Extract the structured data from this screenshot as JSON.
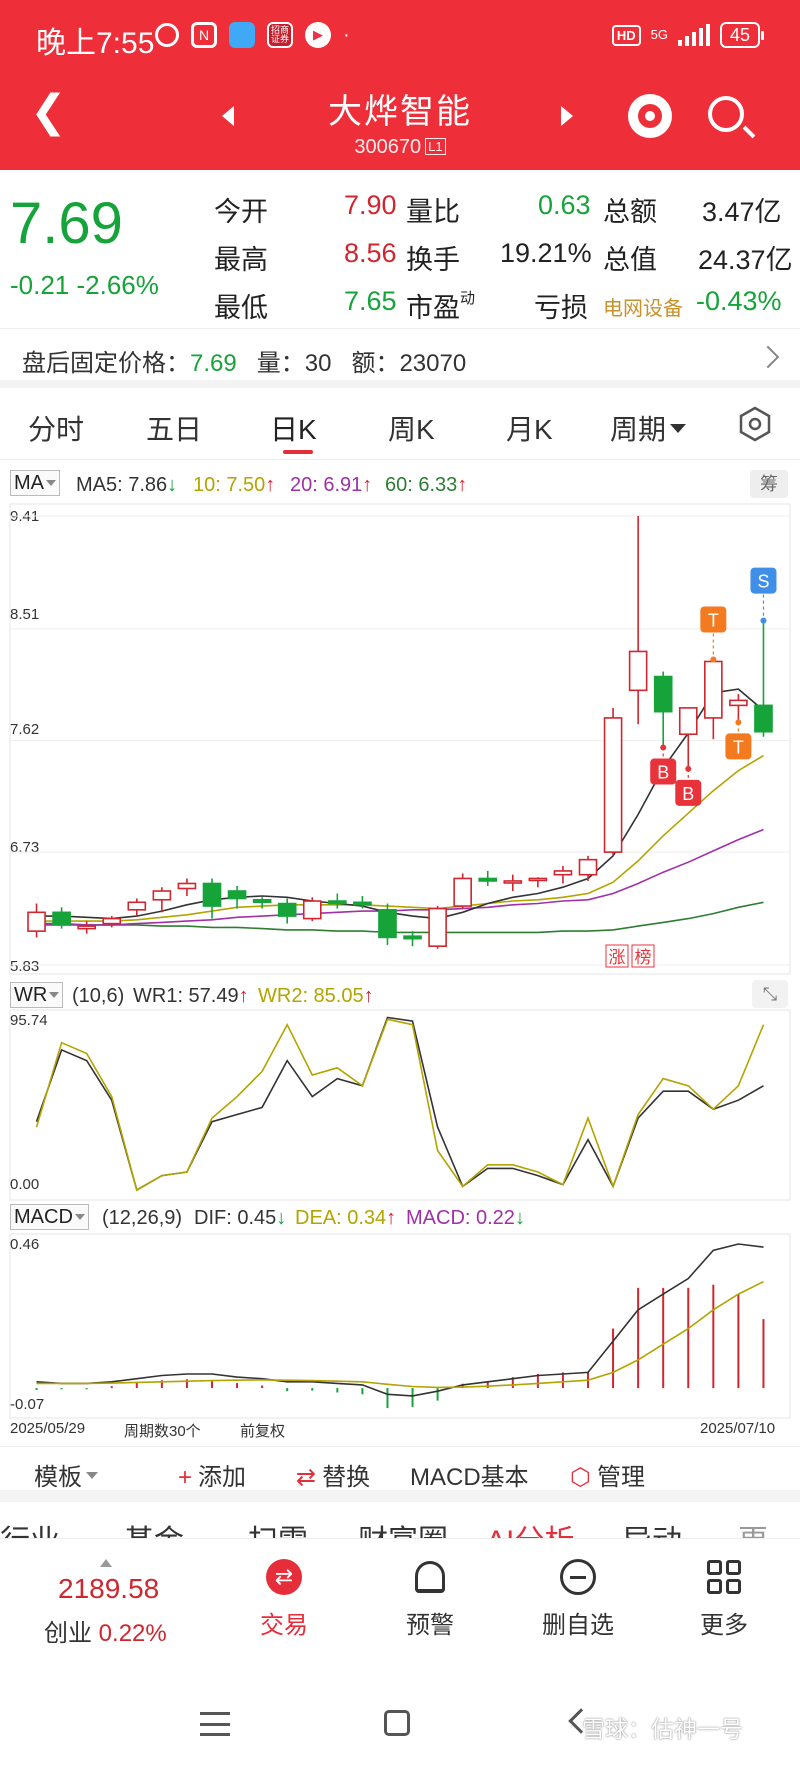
{
  "status_bar": {
    "time": "晚上7:55",
    "icons": [
      "alarm-icon",
      "nfc-icon",
      "app-icon",
      "zhaoshang-icon",
      "video-icon"
    ],
    "dot": "·",
    "hd": "HD",
    "network": "5G",
    "battery": "45"
  },
  "header": {
    "stock_name": "大烨智能",
    "stock_code": "300670",
    "level": "L1"
  },
  "quote": {
    "price": "7.69",
    "change": "-0.21",
    "change_pct": "-2.66%",
    "fields": [
      {
        "label": "今开",
        "value": "7.90"
      },
      {
        "label": "最高",
        "value": "8.56"
      },
      {
        "label": "最低",
        "value": "7.65"
      },
      {
        "label": "量比",
        "value": "0.63"
      },
      {
        "label": "换手",
        "value": "19.21%"
      },
      {
        "label": "市盈",
        "sup": "动",
        "value": "亏损"
      },
      {
        "label": "总额",
        "value": "3.47亿"
      },
      {
        "label": "总值",
        "value": "24.37亿"
      },
      {
        "label": "电网设备",
        "value": "-0.43%"
      }
    ]
  },
  "after_hours": {
    "label": "盘后固定价格：",
    "price": "7.69",
    "vol_label": "量：",
    "vol": "30",
    "amt_label": "额：",
    "amt": "23070"
  },
  "period_tabs": [
    "分时",
    "五日",
    "日K",
    "周K",
    "月K",
    "周期"
  ],
  "active_period": "日K",
  "ma_legend": {
    "selector": "MA",
    "ma5": "MA5: 7.86",
    "ma10": "10: 7.50",
    "ma20": "20: 6.91",
    "ma60": "60: 6.33",
    "chou": "筹"
  },
  "wr_legend": {
    "selector": "WR",
    "params": "(10,6)",
    "wr1": "WR1: 57.49",
    "wr2": "WR2: 85.05"
  },
  "macd_legend": {
    "selector": "MACD",
    "params": "(12,26,9)",
    "dif": "DIF: 0.45",
    "dea": "DEA: 0.34",
    "macd": "MACD: 0.22"
  },
  "colors": {
    "up": "#d0262f",
    "down": "#16a33a",
    "ma5": "#333333",
    "ma10": "#b3a400",
    "ma20": "#a030a8",
    "ma60": "#2e7d32"
  },
  "chart_data": [
    {
      "type": "candlestick",
      "title": "",
      "y_labels": [
        "9.41",
        "8.51",
        "7.62",
        "6.73",
        "5.83"
      ],
      "ylim": [
        5.83,
        9.41
      ],
      "x_start": "2025/05/29",
      "x_end": "2025/07/10",
      "period_count": "周期数30个",
      "adjust": "前复权",
      "candles": [
        {
          "o": 6.1,
          "h": 6.32,
          "l": 6.05,
          "c": 6.25
        },
        {
          "o": 6.25,
          "h": 6.29,
          "l": 6.12,
          "c": 6.15
        },
        {
          "o": 6.12,
          "h": 6.18,
          "l": 6.08,
          "c": 6.14
        },
        {
          "o": 6.16,
          "h": 6.22,
          "l": 6.13,
          "c": 6.2
        },
        {
          "o": 6.27,
          "h": 6.36,
          "l": 6.22,
          "c": 6.33
        },
        {
          "o": 6.35,
          "h": 6.45,
          "l": 6.25,
          "c": 6.42
        },
        {
          "o": 6.44,
          "h": 6.52,
          "l": 6.38,
          "c": 6.48
        },
        {
          "o": 6.48,
          "h": 6.52,
          "l": 6.2,
          "c": 6.3
        },
        {
          "o": 6.42,
          "h": 6.46,
          "l": 6.28,
          "c": 6.36
        },
        {
          "o": 6.35,
          "h": 6.37,
          "l": 6.28,
          "c": 6.33
        },
        {
          "o": 6.32,
          "h": 6.36,
          "l": 6.16,
          "c": 6.22
        },
        {
          "o": 6.2,
          "h": 6.37,
          "l": 6.18,
          "c": 6.34
        },
        {
          "o": 6.34,
          "h": 6.4,
          "l": 6.28,
          "c": 6.32
        },
        {
          "o": 6.33,
          "h": 6.38,
          "l": 6.28,
          "c": 6.31
        },
        {
          "o": 6.27,
          "h": 6.32,
          "l": 5.99,
          "c": 6.05
        },
        {
          "o": 6.06,
          "h": 6.1,
          "l": 5.98,
          "c": 6.04
        },
        {
          "o": 5.98,
          "h": 6.3,
          "l": 5.96,
          "c": 6.28
        },
        {
          "o": 6.3,
          "h": 6.56,
          "l": 6.28,
          "c": 6.52
        },
        {
          "o": 6.52,
          "h": 6.58,
          "l": 6.46,
          "c": 6.5
        },
        {
          "o": 6.5,
          "h": 6.55,
          "l": 6.42,
          "c": 6.5
        },
        {
          "o": 6.51,
          "h": 6.53,
          "l": 6.45,
          "c": 6.52
        },
        {
          "o": 6.55,
          "h": 6.62,
          "l": 6.48,
          "c": 6.58
        },
        {
          "o": 6.55,
          "h": 6.7,
          "l": 6.5,
          "c": 6.67
        },
        {
          "o": 6.73,
          "h": 7.88,
          "l": 6.7,
          "c": 7.8
        },
        {
          "o": 8.02,
          "h": 9.41,
          "l": 7.75,
          "c": 8.33
        },
        {
          "o": 8.13,
          "h": 8.17,
          "l": 7.58,
          "c": 7.85
        },
        {
          "o": 7.67,
          "h": 7.88,
          "l": 7.41,
          "c": 7.88
        },
        {
          "o": 7.8,
          "h": 8.25,
          "l": 7.63,
          "c": 8.25
        },
        {
          "o": 7.9,
          "h": 7.99,
          "l": 7.78,
          "c": 7.94
        },
        {
          "o": 7.9,
          "h": 8.56,
          "l": 7.65,
          "c": 7.69
        }
      ],
      "ma5": [
        6.22,
        6.22,
        6.21,
        6.2,
        6.22,
        6.26,
        6.31,
        6.35,
        6.37,
        6.38,
        6.37,
        6.34,
        6.32,
        6.3,
        6.25,
        6.22,
        6.2,
        6.25,
        6.32,
        6.37,
        6.4,
        6.45,
        6.52,
        6.7,
        7.03,
        7.4,
        7.68,
        8.0,
        8.03,
        7.86
      ],
      "ma10": [
        6.18,
        6.18,
        6.18,
        6.18,
        6.19,
        6.21,
        6.23,
        6.26,
        6.29,
        6.3,
        6.31,
        6.31,
        6.31,
        6.31,
        6.3,
        6.29,
        6.28,
        6.3,
        6.32,
        6.34,
        6.35,
        6.37,
        6.4,
        6.49,
        6.66,
        6.86,
        7.04,
        7.22,
        7.38,
        7.5
      ],
      "ma20": [
        6.15,
        6.15,
        6.15,
        6.15,
        6.16,
        6.17,
        6.18,
        6.19,
        6.21,
        6.22,
        6.23,
        6.24,
        6.25,
        6.26,
        6.26,
        6.27,
        6.27,
        6.28,
        6.29,
        6.31,
        6.32,
        6.34,
        6.35,
        6.4,
        6.48,
        6.57,
        6.65,
        6.74,
        6.83,
        6.91
      ],
      "ma60": [
        6.16,
        6.16,
        6.15,
        6.15,
        6.15,
        6.14,
        6.14,
        6.13,
        6.13,
        6.12,
        6.11,
        6.11,
        6.1,
        6.1,
        6.09,
        6.09,
        6.09,
        6.09,
        6.09,
        6.09,
        6.09,
        6.1,
        6.1,
        6.11,
        6.14,
        6.17,
        6.2,
        6.24,
        6.29,
        6.33
      ],
      "markers": [
        {
          "text": "B",
          "i": 25,
          "pos": "below"
        },
        {
          "text": "B",
          "i": 26,
          "pos": "below"
        },
        {
          "text": "T",
          "i": 27,
          "pos": "above"
        },
        {
          "text": "T",
          "i": 28,
          "pos": "below"
        },
        {
          "text": "S",
          "i": 29,
          "pos": "above"
        }
      ],
      "tags": [
        "涨",
        "榜"
      ]
    },
    {
      "type": "line",
      "title": "WR",
      "y_labels": [
        "95.74",
        "0.00"
      ],
      "ylim": [
        0,
        95.74
      ],
      "series": [
        {
          "name": "WR1",
          "values": [
            38,
            78,
            72,
            50,
            0,
            8,
            10,
            38,
            42,
            46,
            72,
            52,
            62,
            58,
            96,
            94,
            35,
            2,
            12,
            12,
            8,
            3,
            28,
            2,
            40,
            55,
            55,
            45,
            50,
            58
          ]
        },
        {
          "name": "WR2",
          "values": [
            35,
            82,
            76,
            52,
            0,
            8,
            10,
            40,
            52,
            66,
            92,
            64,
            68,
            58,
            95,
            92,
            22,
            2,
            14,
            14,
            10,
            3,
            40,
            2,
            42,
            62,
            58,
            45,
            58,
            92
          ]
        }
      ]
    },
    {
      "type": "bar+line",
      "title": "MACD",
      "y_labels": [
        "0.46",
        "-0.07"
      ],
      "ylim": [
        -0.07,
        0.46
      ],
      "series": [
        {
          "name": "DIF",
          "values": [
            0.02,
            0.015,
            0.015,
            0.02,
            0.03,
            0.04,
            0.045,
            0.045,
            0.035,
            0.03,
            0.02,
            0.02,
            0.015,
            0.01,
            -0.02,
            -0.025,
            -0.01,
            0.01,
            0.02,
            0.03,
            0.04,
            0.045,
            0.05,
            0.15,
            0.25,
            0.3,
            0.35,
            0.44,
            0.46,
            0.45
          ]
        },
        {
          "name": "DEA",
          "values": [
            0.015,
            0.015,
            0.015,
            0.016,
            0.018,
            0.02,
            0.022,
            0.024,
            0.025,
            0.026,
            0.025,
            0.024,
            0.022,
            0.02,
            0.012,
            0.005,
            0.002,
            0.003,
            0.006,
            0.01,
            0.015,
            0.02,
            0.025,
            0.05,
            0.09,
            0.14,
            0.19,
            0.25,
            0.3,
            0.34
          ]
        },
        {
          "name": "MACD",
          "values": [
            -0.006,
            -0.004,
            -0.004,
            0.006,
            0.018,
            0.025,
            0.028,
            0.022,
            0.016,
            0.008,
            -0.01,
            -0.008,
            -0.014,
            -0.02,
            -0.064,
            -0.06,
            -0.04,
            0.014,
            0.022,
            0.035,
            0.045,
            0.05,
            0.052,
            0.19,
            0.32,
            0.32,
            0.32,
            0.33,
            0.3,
            0.22
          ]
        }
      ]
    }
  ],
  "tools": {
    "template": "模板",
    "add": "添加",
    "replace": "替换",
    "macd_basic": "MACD基本",
    "manage": "管理"
  },
  "info_tabs": [
    "行业",
    "基金",
    "扫雷",
    "财富圈",
    "AI分析",
    "异动",
    "更"
  ],
  "index": {
    "value": "2189.58",
    "name": "创业",
    "pct": "0.22%"
  },
  "bottom_nav": {
    "trade": "交易",
    "alert": "预警",
    "remove": "删自选",
    "more": "更多"
  },
  "watermark": "雪球：估神一号"
}
